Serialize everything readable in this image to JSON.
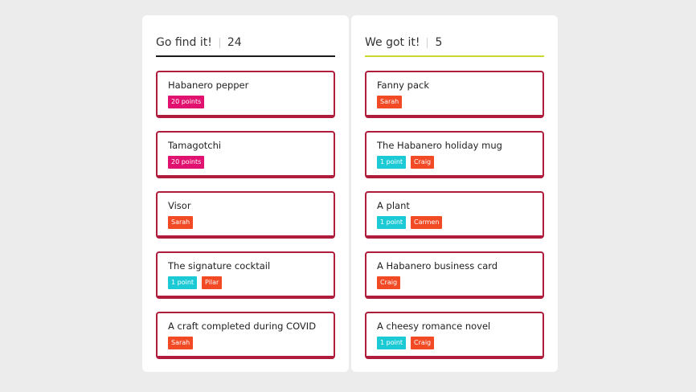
{
  "colors": {
    "page_bg": "#ececec",
    "card_border": "#b01c3c",
    "left_rule": "#1a1a1a",
    "right_rule": "#c9d72e",
    "tag_points_20": "#e0116f",
    "tag_points_1": "#1ccad6",
    "tag_person": "#f24a25"
  },
  "columns": [
    {
      "title": "Go find it!",
      "count": "24",
      "cards": [
        {
          "title": "Habanero pepper",
          "tags": [
            {
              "label": "20 points",
              "color": "#e0116f"
            }
          ]
        },
        {
          "title": "Tamagotchi",
          "tags": [
            {
              "label": "20 points",
              "color": "#e0116f"
            }
          ]
        },
        {
          "title": "Visor",
          "tags": [
            {
              "label": "Sarah",
              "color": "#f24a25"
            }
          ]
        },
        {
          "title": "The signature cocktail",
          "tags": [
            {
              "label": "1 point",
              "color": "#1ccad6"
            },
            {
              "label": "Pilar",
              "color": "#f24a25"
            }
          ]
        },
        {
          "title": "A craft completed during COVID",
          "tags": [
            {
              "label": "Sarah",
              "color": "#f24a25"
            }
          ]
        }
      ]
    },
    {
      "title": "We got it!",
      "count": "5",
      "cards": [
        {
          "title": "Fanny pack",
          "tags": [
            {
              "label": "Sarah",
              "color": "#f24a25"
            }
          ]
        },
        {
          "title": "The Habanero holiday mug",
          "tags": [
            {
              "label": "1 point",
              "color": "#1ccad6"
            },
            {
              "label": "Craig",
              "color": "#f24a25"
            }
          ]
        },
        {
          "title": "A plant",
          "tags": [
            {
              "label": "1 point",
              "color": "#1ccad6"
            },
            {
              "label": "Carmen",
              "color": "#f24a25"
            }
          ]
        },
        {
          "title": "A Habanero business card",
          "tags": [
            {
              "label": "Craig",
              "color": "#f24a25"
            }
          ]
        },
        {
          "title": "A cheesy romance novel",
          "tags": [
            {
              "label": "1 point",
              "color": "#1ccad6"
            },
            {
              "label": "Craig",
              "color": "#f24a25"
            }
          ]
        }
      ]
    }
  ]
}
